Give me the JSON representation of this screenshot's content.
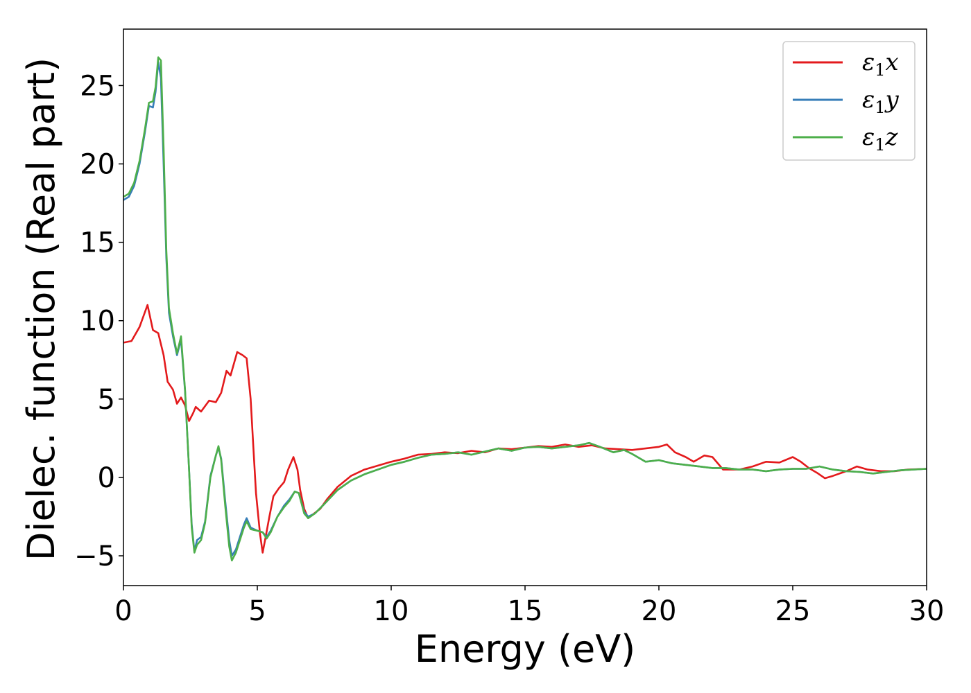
{
  "chart_data": {
    "type": "line",
    "title": "",
    "xlabel": "Energy (eV)",
    "ylabel": "Dielec. function (Real part)",
    "xlim": [
      0,
      30
    ],
    "ylim": [
      -6.9,
      28.6
    ],
    "xticks": [
      0,
      5,
      10,
      15,
      20,
      25,
      30
    ],
    "yticks": [
      -5,
      0,
      5,
      10,
      15,
      20,
      25
    ],
    "xtick_labels": [
      "0",
      "5",
      "10",
      "15",
      "20",
      "25",
      "30"
    ],
    "ytick_labels": [
      "−5",
      "0",
      "5",
      "10",
      "15",
      "20",
      "25"
    ],
    "grid": false,
    "legend_position": "top-right",
    "series": [
      {
        "name": "ε₁x",
        "name_base": "ε",
        "name_sub": "1",
        "name_suffix": "x",
        "color": "#e31a1c",
        "points": [
          [
            0,
            8.6
          ],
          [
            0.3,
            8.7
          ],
          [
            0.6,
            9.6
          ],
          [
            0.9,
            11.0
          ],
          [
            1.1,
            9.4
          ],
          [
            1.3,
            9.2
          ],
          [
            1.5,
            7.8
          ],
          [
            1.65,
            6.1
          ],
          [
            1.85,
            5.6
          ],
          [
            2.0,
            4.7
          ],
          [
            2.15,
            5.1
          ],
          [
            2.3,
            4.6
          ],
          [
            2.45,
            3.6
          ],
          [
            2.6,
            4.1
          ],
          [
            2.7,
            4.5
          ],
          [
            2.9,
            4.2
          ],
          [
            3.2,
            4.9
          ],
          [
            3.45,
            4.8
          ],
          [
            3.65,
            5.4
          ],
          [
            3.85,
            6.8
          ],
          [
            4.0,
            6.5
          ],
          [
            4.25,
            8.0
          ],
          [
            4.45,
            7.8
          ],
          [
            4.6,
            7.6
          ],
          [
            4.75,
            5.0
          ],
          [
            4.85,
            2.0
          ],
          [
            4.95,
            -1.0
          ],
          [
            5.1,
            -3.6
          ],
          [
            5.2,
            -4.8
          ],
          [
            5.3,
            -3.9
          ],
          [
            5.45,
            -2.5
          ],
          [
            5.6,
            -1.2
          ],
          [
            5.8,
            -0.7
          ],
          [
            6.0,
            -0.3
          ],
          [
            6.15,
            0.5
          ],
          [
            6.35,
            1.3
          ],
          [
            6.5,
            0.5
          ],
          [
            6.6,
            -0.8
          ],
          [
            6.75,
            -2.0
          ],
          [
            6.9,
            -2.6
          ],
          [
            7.05,
            -2.4
          ],
          [
            7.2,
            -2.2
          ],
          [
            7.35,
            -2.0
          ],
          [
            7.6,
            -1.4
          ],
          [
            8.0,
            -0.6
          ],
          [
            8.5,
            0.1
          ],
          [
            9.0,
            0.5
          ],
          [
            10.0,
            1.0
          ],
          [
            10.5,
            1.2
          ],
          [
            11.0,
            1.45
          ],
          [
            11.5,
            1.5
          ],
          [
            12.0,
            1.6
          ],
          [
            12.5,
            1.55
          ],
          [
            13.0,
            1.7
          ],
          [
            13.5,
            1.6
          ],
          [
            14.0,
            1.85
          ],
          [
            14.5,
            1.8
          ],
          [
            15.0,
            1.9
          ],
          [
            15.5,
            2.0
          ],
          [
            16.0,
            1.95
          ],
          [
            16.5,
            2.1
          ],
          [
            17.0,
            1.95
          ],
          [
            17.5,
            2.05
          ],
          [
            18.0,
            1.85
          ],
          [
            18.5,
            1.8
          ],
          [
            19.0,
            1.75
          ],
          [
            19.5,
            1.85
          ],
          [
            20.0,
            1.95
          ],
          [
            20.3,
            2.1
          ],
          [
            20.6,
            1.6
          ],
          [
            21.0,
            1.3
          ],
          [
            21.3,
            1.0
          ],
          [
            21.7,
            1.4
          ],
          [
            22.0,
            1.3
          ],
          [
            22.4,
            0.5
          ],
          [
            23.0,
            0.5
          ],
          [
            23.5,
            0.7
          ],
          [
            24.0,
            1.0
          ],
          [
            24.5,
            0.95
          ],
          [
            25.0,
            1.3
          ],
          [
            25.3,
            1.0
          ],
          [
            25.6,
            0.6
          ],
          [
            25.9,
            0.3
          ],
          [
            26.2,
            -0.05
          ],
          [
            26.5,
            0.1
          ],
          [
            27.0,
            0.4
          ],
          [
            27.4,
            0.7
          ],
          [
            27.8,
            0.5
          ],
          [
            28.3,
            0.4
          ],
          [
            28.8,
            0.4
          ],
          [
            29.3,
            0.5
          ],
          [
            30,
            0.55
          ]
        ]
      },
      {
        "name": "ε₁y",
        "name_base": "ε",
        "name_sub": "1",
        "name_suffix": "y",
        "color": "#377eb8",
        "points": [
          [
            0,
            17.7
          ],
          [
            0.2,
            17.9
          ],
          [
            0.4,
            18.6
          ],
          [
            0.6,
            20.0
          ],
          [
            0.8,
            22.0
          ],
          [
            0.95,
            23.7
          ],
          [
            1.1,
            23.6
          ],
          [
            1.2,
            24.6
          ],
          [
            1.3,
            26.5
          ],
          [
            1.4,
            25.5
          ],
          [
            1.5,
            20.0
          ],
          [
            1.6,
            14.0
          ],
          [
            1.7,
            10.5
          ],
          [
            1.85,
            9.0
          ],
          [
            2.0,
            7.8
          ],
          [
            2.15,
            8.8
          ],
          [
            2.3,
            5.5
          ],
          [
            2.45,
            0.5
          ],
          [
            2.55,
            -3.0
          ],
          [
            2.65,
            -4.7
          ],
          [
            2.75,
            -4.0
          ],
          [
            2.9,
            -3.8
          ],
          [
            3.05,
            -2.8
          ],
          [
            3.25,
            0.1
          ],
          [
            3.45,
            1.4
          ],
          [
            3.55,
            1.9
          ],
          [
            3.65,
            1.2
          ],
          [
            3.8,
            -1.5
          ],
          [
            3.95,
            -4.0
          ],
          [
            4.05,
            -5.0
          ],
          [
            4.2,
            -4.6
          ],
          [
            4.35,
            -3.8
          ],
          [
            4.5,
            -3.0
          ],
          [
            4.6,
            -2.6
          ],
          [
            4.75,
            -3.2
          ],
          [
            5.0,
            -3.4
          ],
          [
            5.2,
            -3.5
          ],
          [
            5.35,
            -3.8
          ],
          [
            5.5,
            -3.4
          ],
          [
            5.75,
            -2.5
          ],
          [
            6.0,
            -1.8
          ],
          [
            6.2,
            -1.4
          ],
          [
            6.4,
            -0.9
          ],
          [
            6.55,
            -1.0
          ],
          [
            6.75,
            -2.2
          ],
          [
            6.9,
            -2.5
          ],
          [
            7.15,
            -2.3
          ],
          [
            7.5,
            -1.7
          ],
          [
            8.0,
            -0.8
          ],
          [
            8.5,
            -0.2
          ],
          [
            9.0,
            0.2
          ],
          [
            10.0,
            0.8
          ],
          [
            10.5,
            1.0
          ],
          [
            11.0,
            1.25
          ],
          [
            11.5,
            1.45
          ],
          [
            12.0,
            1.5
          ],
          [
            12.5,
            1.6
          ],
          [
            13.0,
            1.45
          ],
          [
            13.5,
            1.65
          ],
          [
            14.0,
            1.85
          ],
          [
            14.5,
            1.7
          ],
          [
            15.0,
            1.9
          ],
          [
            15.5,
            1.95
          ],
          [
            16.0,
            1.85
          ],
          [
            16.5,
            1.95
          ],
          [
            17.0,
            2.05
          ],
          [
            17.4,
            2.2
          ],
          [
            17.8,
            1.95
          ],
          [
            18.3,
            1.6
          ],
          [
            18.7,
            1.75
          ],
          [
            19.0,
            1.5
          ],
          [
            19.5,
            1.0
          ],
          [
            20.0,
            1.1
          ],
          [
            20.5,
            0.9
          ],
          [
            21.0,
            0.8
          ],
          [
            21.5,
            0.7
          ],
          [
            22.0,
            0.6
          ],
          [
            22.5,
            0.6
          ],
          [
            23.0,
            0.5
          ],
          [
            23.5,
            0.5
          ],
          [
            24.0,
            0.4
          ],
          [
            24.5,
            0.5
          ],
          [
            25.0,
            0.55
          ],
          [
            25.5,
            0.55
          ],
          [
            26.0,
            0.7
          ],
          [
            26.5,
            0.5
          ],
          [
            27.0,
            0.4
          ],
          [
            27.5,
            0.35
          ],
          [
            28.0,
            0.25
          ],
          [
            28.5,
            0.35
          ],
          [
            29.0,
            0.45
          ],
          [
            29.5,
            0.5
          ],
          [
            30,
            0.55
          ]
        ]
      },
      {
        "name": "ε₁z",
        "name_base": "ε",
        "name_sub": "1",
        "name_suffix": "z",
        "color": "#4daf4a",
        "points": [
          [
            0,
            17.9
          ],
          [
            0.2,
            18.1
          ],
          [
            0.4,
            18.8
          ],
          [
            0.6,
            20.2
          ],
          [
            0.8,
            22.2
          ],
          [
            0.95,
            23.9
          ],
          [
            1.1,
            24.0
          ],
          [
            1.2,
            24.9
          ],
          [
            1.3,
            26.8
          ],
          [
            1.4,
            26.6
          ],
          [
            1.5,
            21.0
          ],
          [
            1.6,
            14.5
          ],
          [
            1.7,
            10.8
          ],
          [
            1.85,
            9.2
          ],
          [
            2.0,
            7.9
          ],
          [
            2.15,
            9.0
          ],
          [
            2.3,
            5.6
          ],
          [
            2.45,
            0.5
          ],
          [
            2.55,
            -3.2
          ],
          [
            2.65,
            -4.8
          ],
          [
            2.75,
            -4.3
          ],
          [
            2.9,
            -4.0
          ],
          [
            3.05,
            -2.9
          ],
          [
            3.25,
            0.0
          ],
          [
            3.45,
            1.4
          ],
          [
            3.55,
            2.0
          ],
          [
            3.65,
            1.1
          ],
          [
            3.8,
            -1.8
          ],
          [
            3.95,
            -4.4
          ],
          [
            4.05,
            -5.3
          ],
          [
            4.2,
            -4.8
          ],
          [
            4.35,
            -4.0
          ],
          [
            4.5,
            -3.2
          ],
          [
            4.6,
            -2.8
          ],
          [
            4.75,
            -3.3
          ],
          [
            5.0,
            -3.4
          ],
          [
            5.2,
            -3.5
          ],
          [
            5.35,
            -3.9
          ],
          [
            5.5,
            -3.5
          ],
          [
            5.75,
            -2.5
          ],
          [
            6.0,
            -1.9
          ],
          [
            6.2,
            -1.5
          ],
          [
            6.4,
            -0.9
          ],
          [
            6.55,
            -1.0
          ],
          [
            6.75,
            -2.3
          ],
          [
            6.9,
            -2.6
          ],
          [
            7.15,
            -2.3
          ],
          [
            7.5,
            -1.7
          ],
          [
            8.0,
            -0.8
          ],
          [
            8.5,
            -0.2
          ],
          [
            9.0,
            0.2
          ],
          [
            10.0,
            0.8
          ],
          [
            10.5,
            1.0
          ],
          [
            11.0,
            1.25
          ],
          [
            11.5,
            1.45
          ],
          [
            12.0,
            1.5
          ],
          [
            12.5,
            1.6
          ],
          [
            13.0,
            1.45
          ],
          [
            13.5,
            1.65
          ],
          [
            14.0,
            1.85
          ],
          [
            14.5,
            1.7
          ],
          [
            15.0,
            1.9
          ],
          [
            15.5,
            1.95
          ],
          [
            16.0,
            1.85
          ],
          [
            16.5,
            1.95
          ],
          [
            17.0,
            2.05
          ],
          [
            17.4,
            2.2
          ],
          [
            17.8,
            1.95
          ],
          [
            18.3,
            1.6
          ],
          [
            18.7,
            1.75
          ],
          [
            19.0,
            1.5
          ],
          [
            19.5,
            1.0
          ],
          [
            20.0,
            1.1
          ],
          [
            20.5,
            0.9
          ],
          [
            21.0,
            0.8
          ],
          [
            21.5,
            0.7
          ],
          [
            22.0,
            0.6
          ],
          [
            22.5,
            0.6
          ],
          [
            23.0,
            0.5
          ],
          [
            23.5,
            0.5
          ],
          [
            24.0,
            0.4
          ],
          [
            24.5,
            0.5
          ],
          [
            25.0,
            0.55
          ],
          [
            25.5,
            0.55
          ],
          [
            26.0,
            0.7
          ],
          [
            26.5,
            0.5
          ],
          [
            27.0,
            0.4
          ],
          [
            27.5,
            0.35
          ],
          [
            28.0,
            0.25
          ],
          [
            28.5,
            0.35
          ],
          [
            29.0,
            0.45
          ],
          [
            29.5,
            0.5
          ],
          [
            30,
            0.55
          ]
        ]
      }
    ]
  }
}
